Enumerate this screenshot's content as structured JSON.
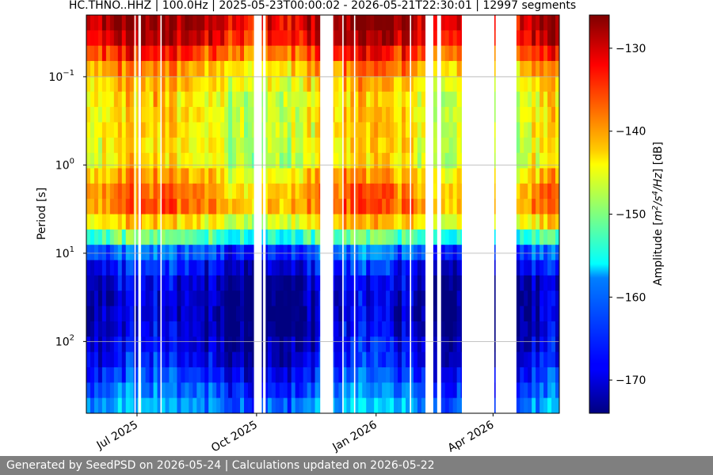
{
  "chart_data": {
    "type": "heatmap",
    "title": "HC.THNO..HHZ | 100.0Hz | 2025-05-23T00:00:02 - 2026-05-21T22:30:01 | 12997 segments",
    "ylabel": "Period [s]",
    "ylabel_scale": "log",
    "y_ticks": [
      {
        "value": 0.1,
        "base": "10",
        "exp": "−1"
      },
      {
        "value": 1,
        "base": "10",
        "exp": "0"
      },
      {
        "value": 10,
        "base": "10",
        "exp": "1"
      },
      {
        "value": 100,
        "base": "10",
        "exp": "2"
      }
    ],
    "ylim": [
      0.02,
      650
    ],
    "y_inverted": true,
    "xlim": [
      "2025-05-23",
      "2026-05-22"
    ],
    "x_ticks": [
      {
        "date": "2025-07-01",
        "label": "Jul 2025"
      },
      {
        "date": "2025-10-01",
        "label": "Oct 2025"
      },
      {
        "date": "2026-01-01",
        "label": "Jan 2026"
      },
      {
        "date": "2026-04-01",
        "label": "Apr 2026"
      }
    ],
    "grid": true,
    "colormap": "jet",
    "colorbar": {
      "label_prefix": "Amplitude [",
      "label_m": "m",
      "label_s": "/s",
      "label_hz": "/Hz",
      "label_suffix": "] [dB]",
      "exp_m": "2",
      "exp_s": "4",
      "range": [
        -174,
        -126
      ],
      "ticks": [
        {
          "value": -130,
          "label": "−130"
        },
        {
          "value": -140,
          "label": "−140"
        },
        {
          "value": -150,
          "label": "−150"
        },
        {
          "value": -160,
          "label": "−160"
        },
        {
          "value": -170,
          "label": "−170"
        }
      ]
    },
    "data_gaps": [
      {
        "start": "2025-06-29",
        "end": "2025-06-30"
      },
      {
        "start": "2025-07-02",
        "end": "2025-07-04"
      },
      {
        "start": "2025-07-19",
        "end": "2025-07-20"
      },
      {
        "start": "2025-09-29",
        "end": "2025-10-05"
      },
      {
        "start": "2025-10-06",
        "end": "2025-10-08"
      },
      {
        "start": "2025-11-19",
        "end": "2025-11-29"
      },
      {
        "start": "2025-12-06",
        "end": "2025-12-07"
      },
      {
        "start": "2025-12-15",
        "end": "2025-12-16"
      },
      {
        "start": "2026-01-27",
        "end": "2026-01-28"
      },
      {
        "start": "2026-02-08",
        "end": "2026-02-14"
      },
      {
        "start": "2026-02-17",
        "end": "2026-02-20"
      },
      {
        "start": "2026-03-08",
        "end": "2026-04-02"
      },
      {
        "start": "2026-04-03",
        "end": "2026-04-19"
      }
    ]
  },
  "footer": {
    "text": "Generated by SeedPSD on 2026-05-24 | Calculations updated on 2026-05-22"
  }
}
